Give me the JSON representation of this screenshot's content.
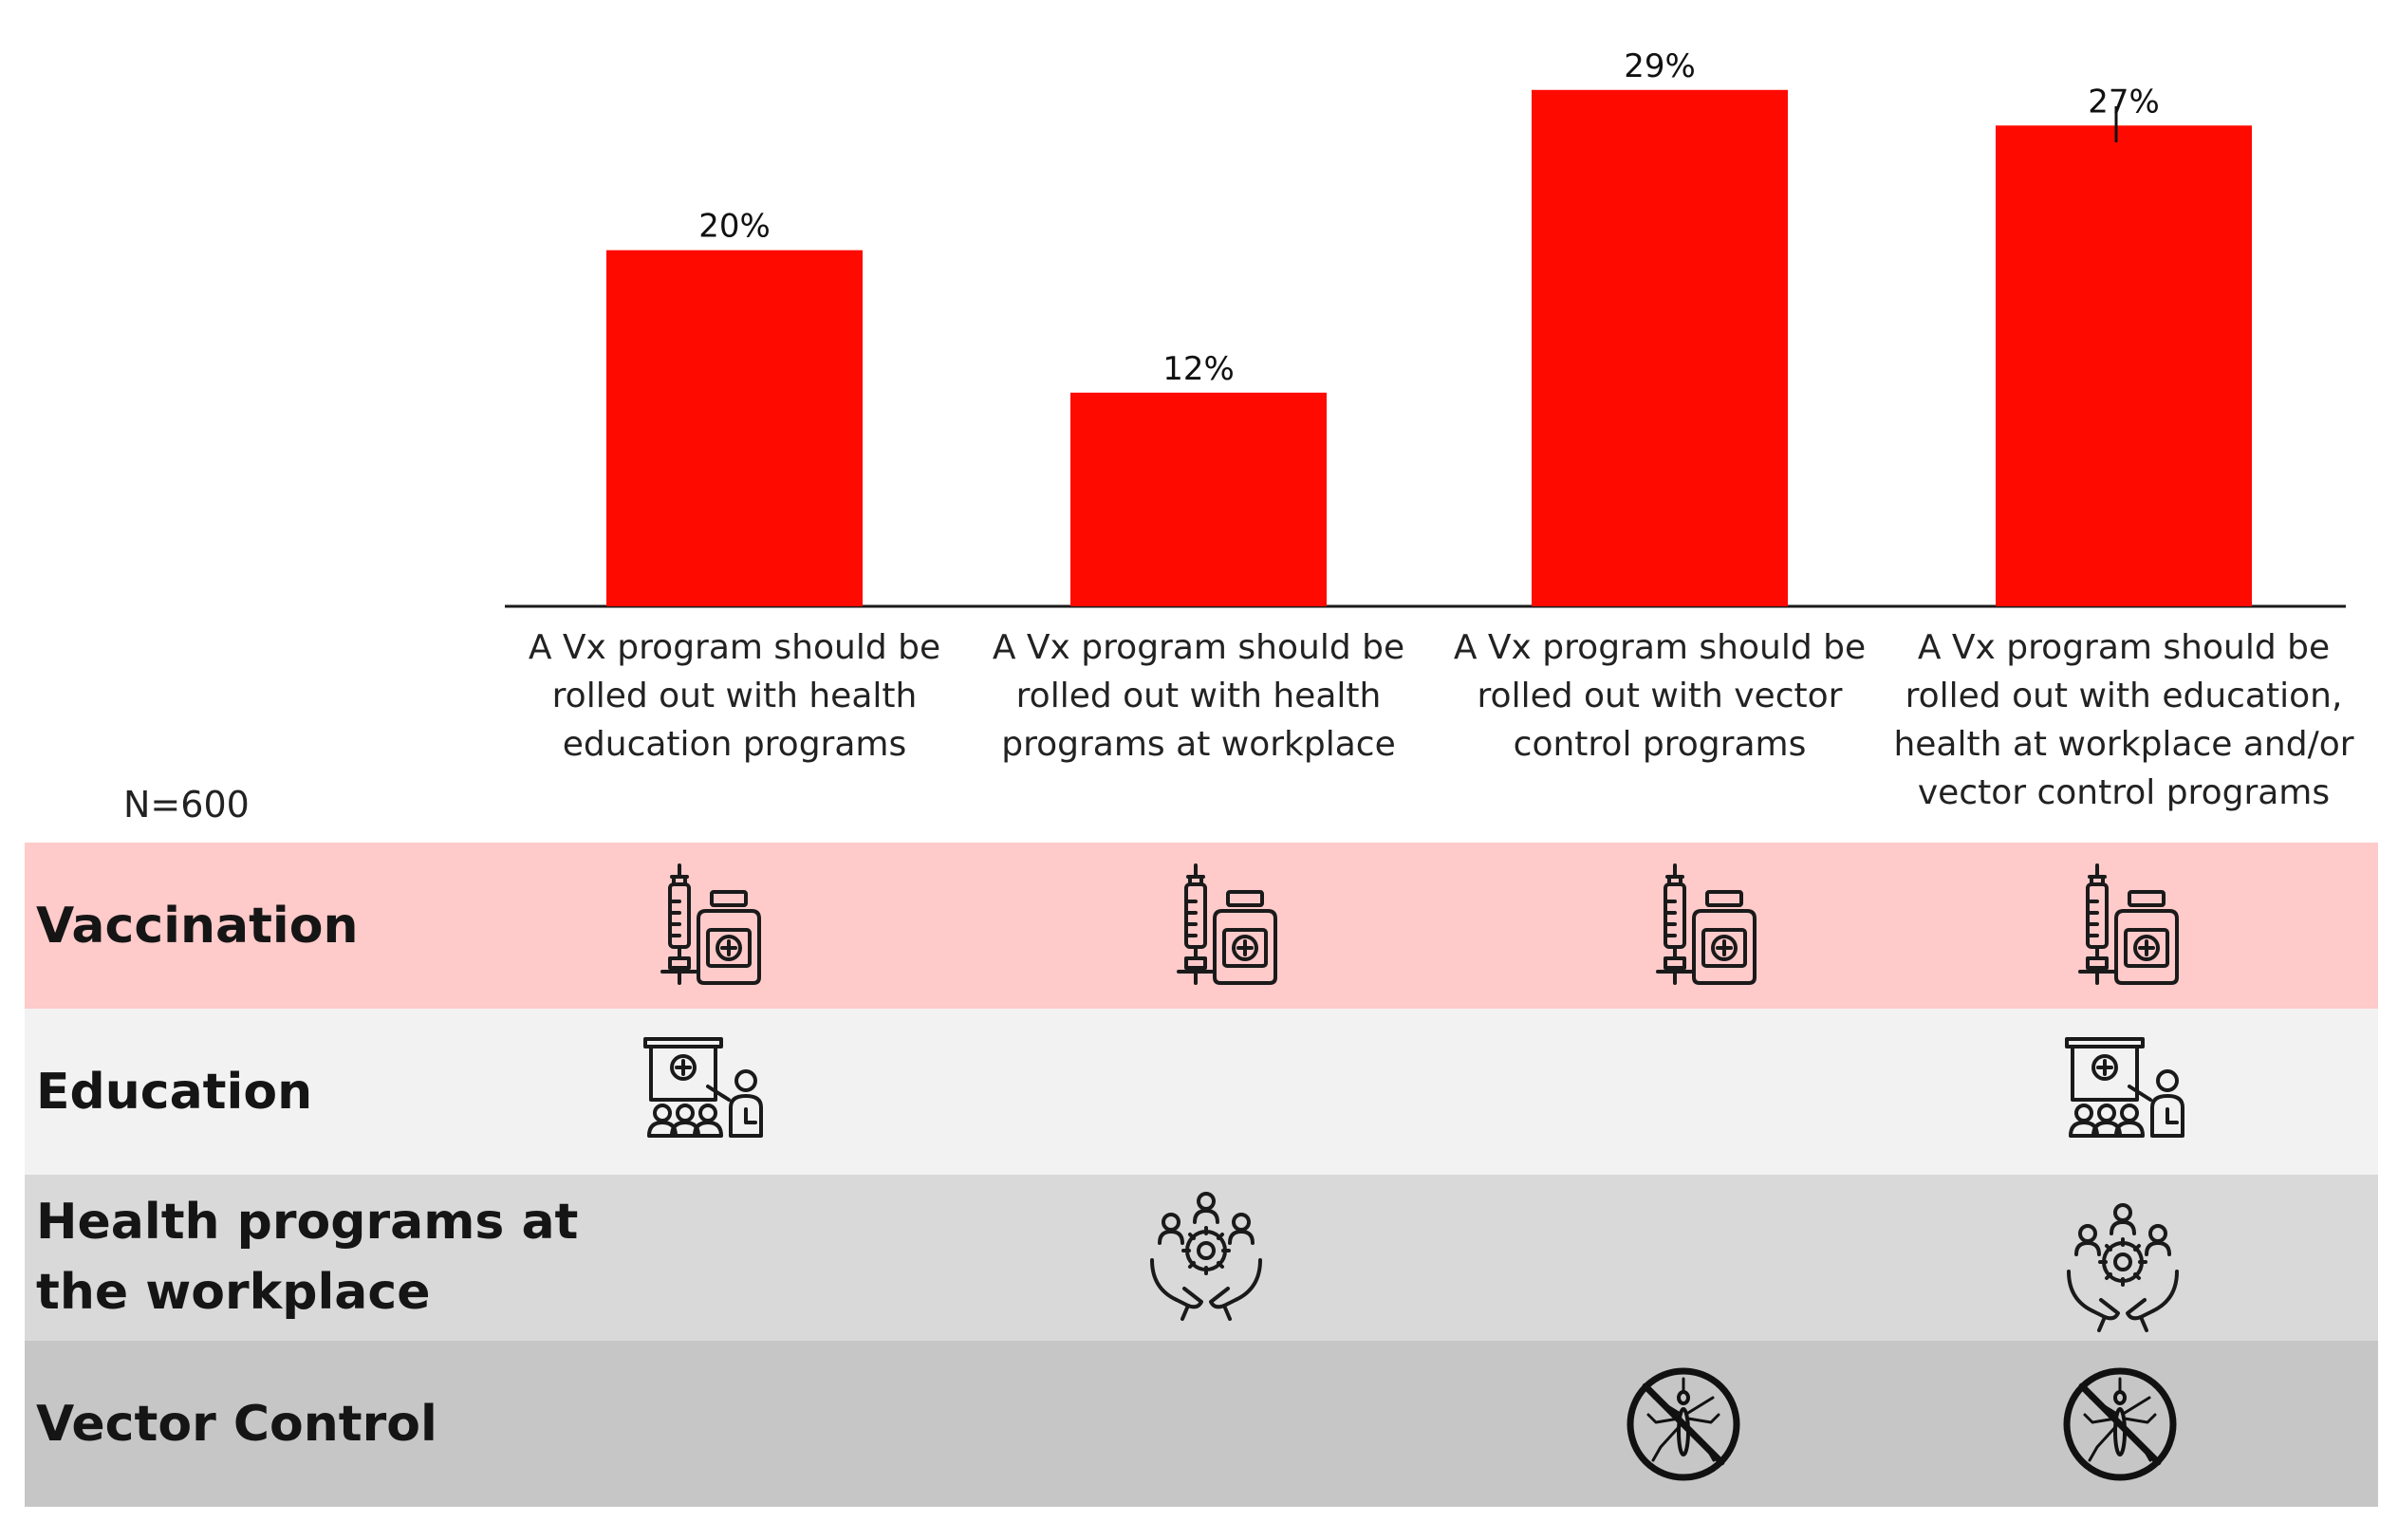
{
  "chart_data": {
    "type": "bar",
    "categories": [
      "A Vx program should be rolled out with health education programs",
      "A Vx program should be rolled out with health programs at workplace",
      "A Vx program should be rolled out with vector control programs",
      "A Vx program should be rolled out with education, health at workplace and/or vector control programs"
    ],
    "category_lines": [
      [
        "A Vx program should be",
        "rolled out with health",
        "education programs"
      ],
      [
        "A Vx program should be",
        "rolled out with health",
        "programs at workplace"
      ],
      [
        "A Vx program should be",
        "rolled out with vector",
        "control programs"
      ],
      [
        "A Vx program should be",
        "rolled out with education,",
        "health at workplace and/or",
        "vector control programs"
      ]
    ],
    "values": [
      20,
      12,
      29,
      27
    ],
    "value_labels": [
      "20%",
      "12%",
      "29%",
      "27%"
    ],
    "unit": "%",
    "ylim": [
      0,
      30
    ],
    "bar_color": "#ff0a00",
    "title": "",
    "xlabel": "",
    "ylabel": "",
    "grid": false
  },
  "sample_label": "N=600",
  "matrix": {
    "rows": [
      {
        "label": "Vaccination",
        "color": "#ffcaca",
        "icon": "syringe-vial-icon",
        "marks": [
          true,
          true,
          true,
          true
        ]
      },
      {
        "label": "Education",
        "color": "#f2f2f2",
        "icon": "presentation-icon",
        "marks": [
          true,
          false,
          false,
          true
        ]
      },
      {
        "label_lines": [
          "Health programs at",
          "the workplace"
        ],
        "color": "#d9d9d9",
        "icon": "workplace-health-icon",
        "marks": [
          false,
          true,
          false,
          true
        ]
      },
      {
        "label": "Vector Control",
        "color": "#c6c6c6",
        "icon": "no-mosquito-icon",
        "marks": [
          false,
          false,
          true,
          true
        ]
      }
    ]
  }
}
